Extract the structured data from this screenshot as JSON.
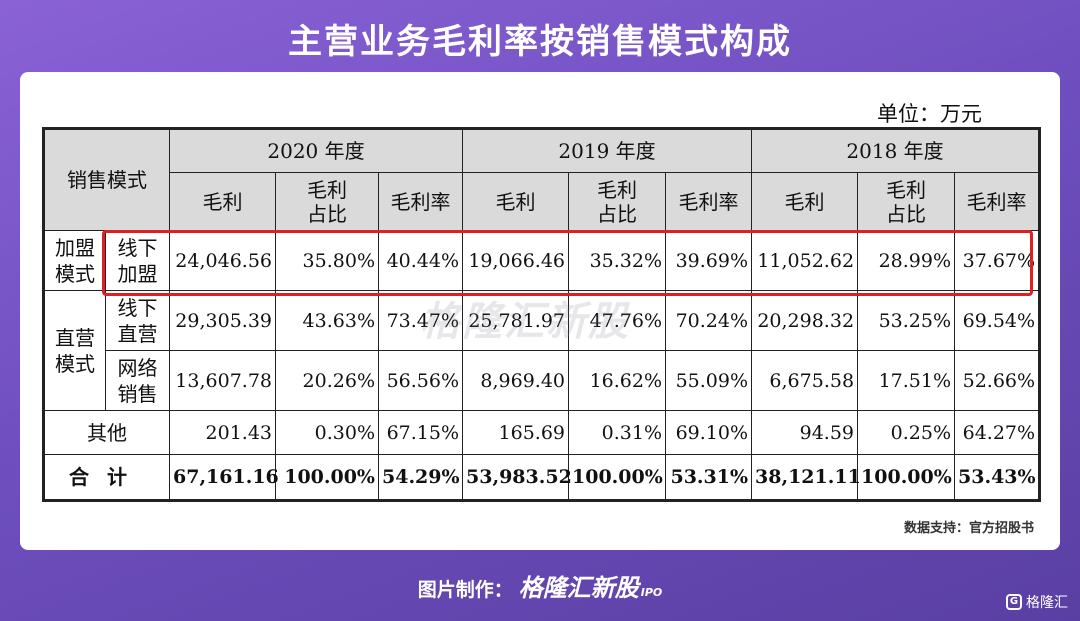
{
  "title": "主营业务毛利率按销售模式构成",
  "unit": "单位：万元",
  "table": {
    "corner": "销售模式",
    "years": [
      "2020 年度",
      "2019 年度",
      "2018 年度"
    ],
    "sub": {
      "gp": "毛利",
      "share_l1": "毛利",
      "share_l2": "占比",
      "rate": "毛利率"
    },
    "groups": {
      "franchise_l1": "加盟",
      "franchise_l2": "模式",
      "direct_l1": "直营",
      "direct_l2": "模式"
    },
    "rows": [
      {
        "sub_l1": "线下",
        "sub_l2": "加盟",
        "values": [
          "24,046.56",
          "35.80%",
          "40.44%",
          "19,066.46",
          "35.32%",
          "39.69%",
          "11,052.62",
          "28.99%",
          "37.67%"
        ]
      },
      {
        "sub_l1": "线下",
        "sub_l2": "直营",
        "values": [
          "29,305.39",
          "43.63%",
          "73.47%",
          "25,781.97",
          "47.76%",
          "70.24%",
          "20,298.32",
          "53.25%",
          "69.54%"
        ]
      },
      {
        "sub_l1": "网络",
        "sub_l2": "销售",
        "values": [
          "13,607.78",
          "20.26%",
          "56.56%",
          "8,969.40",
          "16.62%",
          "55.09%",
          "6,675.58",
          "17.51%",
          "52.66%"
        ]
      },
      {
        "label": "其他",
        "values": [
          "201.43",
          "0.30%",
          "67.15%",
          "165.69",
          "0.31%",
          "69.10%",
          "94.59",
          "0.25%",
          "64.27%"
        ]
      },
      {
        "label": "合计",
        "values": [
          "67,161.16",
          "100.00%",
          "54.29%",
          "53,983.52",
          "100.00%",
          "53.31%",
          "38,121.11",
          "100.00%",
          "53.43%"
        ]
      }
    ]
  },
  "watermark": "格隆汇新股",
  "source": "数据支持：官方招股书",
  "footer": {
    "prefix": "图片制作：",
    "brand": "格隆汇新股",
    "ipo": "IPO"
  },
  "corner_brand": "格隆汇",
  "colors": {
    "highlight": "#e02020",
    "header_bg": "#dadada",
    "bg_top": "#8a62d6",
    "bg_bottom": "#5a3fa3"
  }
}
